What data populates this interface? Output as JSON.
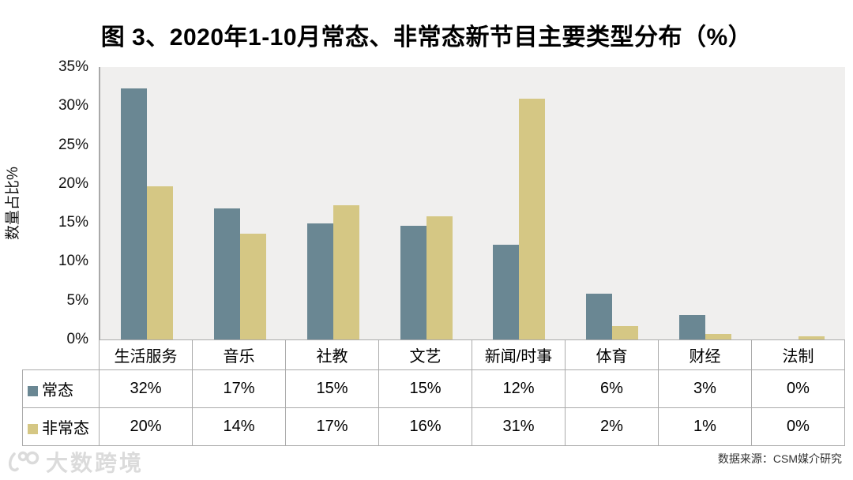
{
  "title": "图 3、2020年1-10月常态、非常态新节目主要类型分布（%）",
  "source_caption": "数据来源：CSM媒介研究",
  "watermark_text": "大数跨境",
  "colors": {
    "series_changtai": "#6A8793",
    "series_feichangtai": "#D5C784",
    "plot_background": "#F0EFEE",
    "axis_line": "#A9A9A9",
    "table_border": "#ABABAB",
    "watermark": "#DBDBDB"
  },
  "chart_data": {
    "type": "bar",
    "title": "图 3、2020年1-10月常态、非常态新节目主要类型分布（%）",
    "xlabel": "",
    "ylabel": "数量占比%",
    "ylim": [
      0,
      35
    ],
    "ytick_step": 5,
    "ytick_labels": [
      "35%",
      "30%",
      "25%",
      "20%",
      "15%",
      "10%",
      "5%",
      "0%"
    ],
    "grid": false,
    "legend_position": "data-table-left",
    "categories": [
      "生活服务",
      "音乐",
      "社教",
      "文艺",
      "新闻/时事",
      "体育",
      "财经",
      "法制"
    ],
    "series": [
      {
        "name": "常态",
        "key": "changtai",
        "color": "#6A8793",
        "values": [
          32,
          17,
          15,
          15,
          12,
          6,
          3,
          0
        ],
        "display": [
          "32%",
          "17%",
          "15%",
          "15%",
          "12%",
          "6%",
          "3%",
          "0%"
        ],
        "bar_heights_pct": [
          32.3,
          16.8,
          14.9,
          14.6,
          12.2,
          5.9,
          3.1,
          0
        ]
      },
      {
        "name": "非常态",
        "key": "feichangtai",
        "color": "#D5C784",
        "values": [
          20,
          14,
          17,
          16,
          31,
          2,
          1,
          0
        ],
        "display": [
          "20%",
          "14%",
          "17%",
          "16%",
          "31%",
          "2%",
          "1%",
          "0%"
        ],
        "bar_heights_pct": [
          19.7,
          13.6,
          17.2,
          15.8,
          30.9,
          1.7,
          0.7,
          0.4
        ]
      }
    ]
  }
}
